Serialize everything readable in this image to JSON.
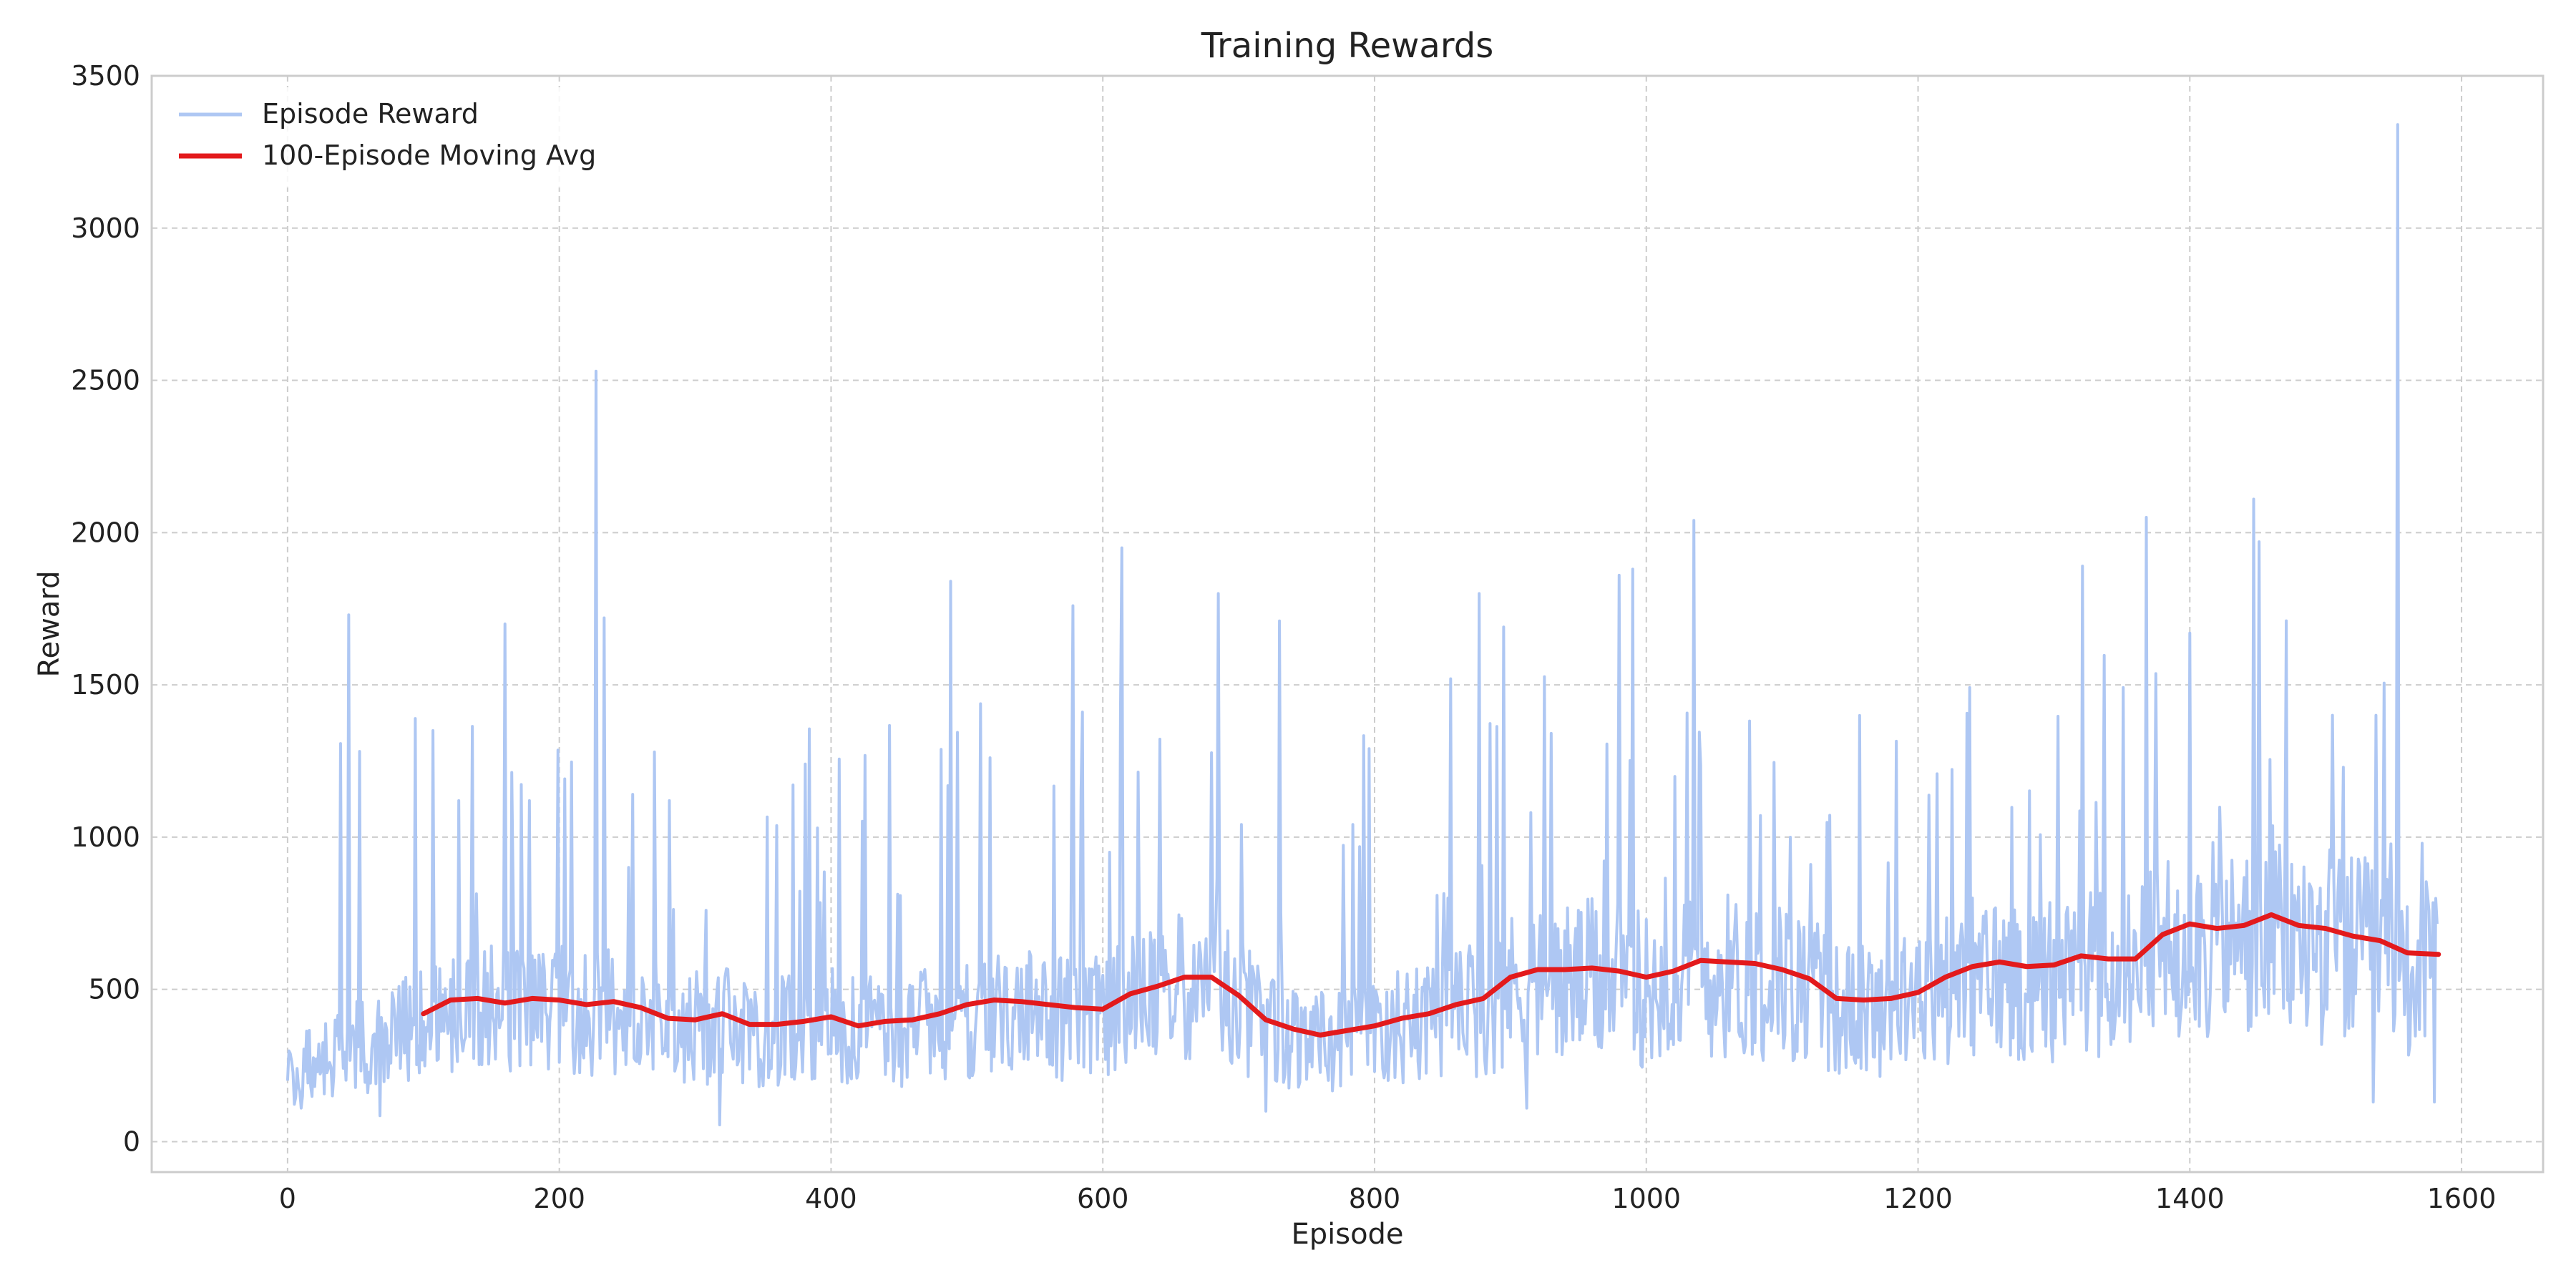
{
  "chart_data": {
    "type": "line",
    "title": "Training Rewards",
    "xlabel": "Episode",
    "ylabel": "Reward",
    "xlim": [
      -100,
      1660
    ],
    "ylim": [
      -100,
      3500
    ],
    "xticks": [
      0,
      200,
      400,
      600,
      800,
      1000,
      1200,
      1400,
      1600
    ],
    "yticks": [
      0,
      500,
      1000,
      1500,
      2000,
      2500,
      3000,
      3500
    ],
    "grid": true,
    "legend_position": "top-left",
    "series": [
      {
        "name": "Episode Reward",
        "color": "#aec7f3",
        "kind": "raw",
        "episodes": 1583,
        "peaks": [
          [
            45,
            1730
          ],
          [
            160,
            1700
          ],
          [
            178,
            1120
          ],
          [
            126,
            1120
          ],
          [
            227,
            2530
          ],
          [
            233,
            1720
          ],
          [
            281,
            1120
          ],
          [
            381,
            1240
          ],
          [
            390,
            1030
          ],
          [
            488,
            1840
          ],
          [
            578,
            1760
          ],
          [
            614,
            1950
          ],
          [
            685,
            1800
          ],
          [
            730,
            1710
          ],
          [
            856,
            1520
          ],
          [
            877,
            1800
          ],
          [
            895,
            1690
          ],
          [
            980,
            1860
          ],
          [
            990,
            1880
          ],
          [
            1035,
            2040
          ],
          [
            1321,
            1890
          ],
          [
            1368,
            2050
          ],
          [
            1400,
            1670
          ],
          [
            1447,
            2110
          ],
          [
            1451,
            1970
          ],
          [
            1553,
            3340
          ],
          [
            1505,
            1400
          ],
          [
            1537,
            1400
          ]
        ],
        "troughs": [
          [
            0,
            200
          ],
          [
            10,
            110
          ],
          [
            68,
            85
          ],
          [
            318,
            55
          ],
          [
            720,
            100
          ],
          [
            912,
            110
          ],
          [
            1535,
            130
          ],
          [
            1580,
            130
          ]
        ]
      },
      {
        "name": "100-Episode Moving Avg",
        "color": "#e31a1c",
        "kind": "smoothed",
        "x": [
          100,
          120,
          140,
          160,
          180,
          200,
          220,
          240,
          260,
          280,
          300,
          320,
          340,
          360,
          380,
          400,
          420,
          440,
          460,
          480,
          500,
          520,
          540,
          560,
          580,
          600,
          620,
          640,
          660,
          680,
          700,
          720,
          740,
          760,
          780,
          800,
          820,
          840,
          860,
          880,
          900,
          920,
          940,
          960,
          980,
          1000,
          1020,
          1040,
          1060,
          1080,
          1100,
          1120,
          1140,
          1160,
          1180,
          1200,
          1220,
          1240,
          1260,
          1280,
          1300,
          1320,
          1340,
          1360,
          1380,
          1400,
          1420,
          1440,
          1460,
          1480,
          1500,
          1520,
          1540,
          1560,
          1583
        ],
        "y": [
          420,
          465,
          470,
          455,
          470,
          465,
          450,
          460,
          440,
          405,
          400,
          420,
          385,
          385,
          395,
          410,
          380,
          395,
          400,
          420,
          450,
          465,
          460,
          450,
          440,
          435,
          485,
          510,
          540,
          540,
          480,
          400,
          370,
          350,
          365,
          380,
          405,
          420,
          450,
          470,
          540,
          565,
          565,
          570,
          560,
          540,
          560,
          595,
          590,
          585,
          565,
          535,
          470,
          465,
          470,
          490,
          540,
          575,
          590,
          575,
          580,
          610,
          600,
          600,
          680,
          715,
          700,
          710,
          745,
          710,
          700,
          675,
          660,
          620,
          615
        ]
      }
    ]
  }
}
